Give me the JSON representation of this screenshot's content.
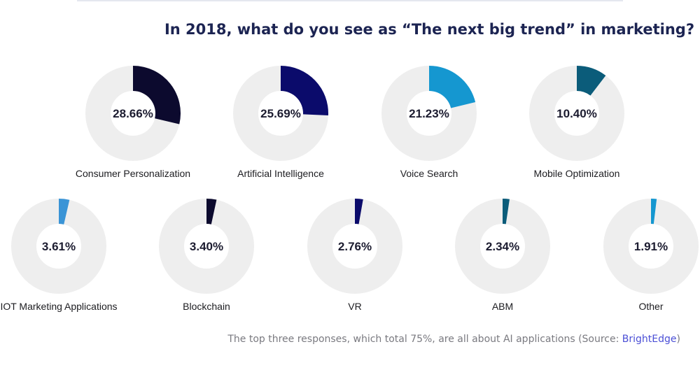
{
  "title": "In 2018, what do you see as “The next big trend” in marketing?",
  "caption": {
    "text": "The top three responses, which total 75%, are all about AI applications (Source: ",
    "link_text": "BrightEdge",
    "suffix": ")",
    "link_color": "#4b4fd6"
  },
  "chart_data": {
    "type": "pie",
    "style": "donut",
    "title": "In 2018, what do you see as “The next big trend” in marketing?",
    "unit": "%",
    "track_color": "#eeeeee",
    "categories": [
      "Consumer Personalization",
      "Artificial Intelligence",
      "Voice Search",
      "Mobile Optimization",
      "IOT Marketing Applications",
      "Blockchain",
      "VR",
      "ABM",
      "Other"
    ],
    "values": [
      28.66,
      25.69,
      21.23,
      10.4,
      3.61,
      3.4,
      2.76,
      2.34,
      1.91
    ],
    "labels": [
      "28.66%",
      "25.69%",
      "21.23%",
      "10.40%",
      "3.61%",
      "3.40%",
      "2.76%",
      "2.34%",
      "1.91%"
    ],
    "colors": [
      "#0c0a2e",
      "#0b0b6b",
      "#1597d0",
      "#0b5c7a",
      "#3a94d6",
      "#0c0a2e",
      "#0b0b6b",
      "#0b5c7a",
      "#1597d0"
    ]
  }
}
